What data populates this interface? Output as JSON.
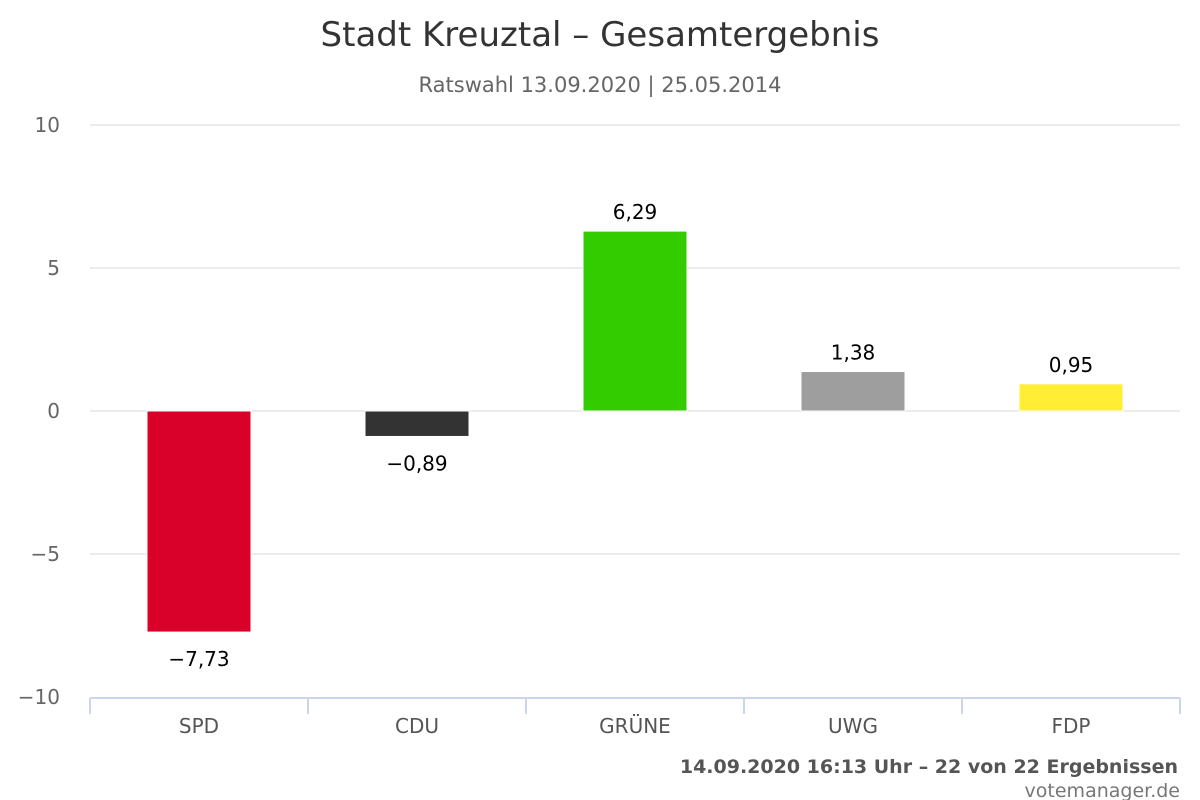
{
  "chart_data": {
    "type": "bar",
    "title": "Stadt Kreuztal – Gesamtergebnis",
    "subtitle": "Ratswahl 13.09.2020 | 25.05.2014",
    "categories": [
      "SPD",
      "CDU",
      "GRÜNE",
      "UWG",
      "FDP"
    ],
    "values": [
      -7.73,
      -0.89,
      6.29,
      1.38,
      0.95
    ],
    "value_labels": [
      "−7,73",
      "−0,89",
      "6,29",
      "1,38",
      "0,95"
    ],
    "colors": [
      "#d9002a",
      "#333333",
      "#33cc00",
      "#9e9e9e",
      "#ffee33"
    ],
    "ylim": [
      -10,
      10
    ],
    "yticks": [
      10,
      5,
      0,
      -5,
      -10
    ],
    "ytick_labels": [
      "10",
      "5",
      "0",
      "−5",
      "−10"
    ],
    "xlabel": "",
    "ylabel": "",
    "grid": true,
    "legend": "none"
  },
  "footer": {
    "status": "14.09.2020 16:13 Uhr – 22 von 22 Ergebnissen",
    "credit": "votemanager.de"
  }
}
